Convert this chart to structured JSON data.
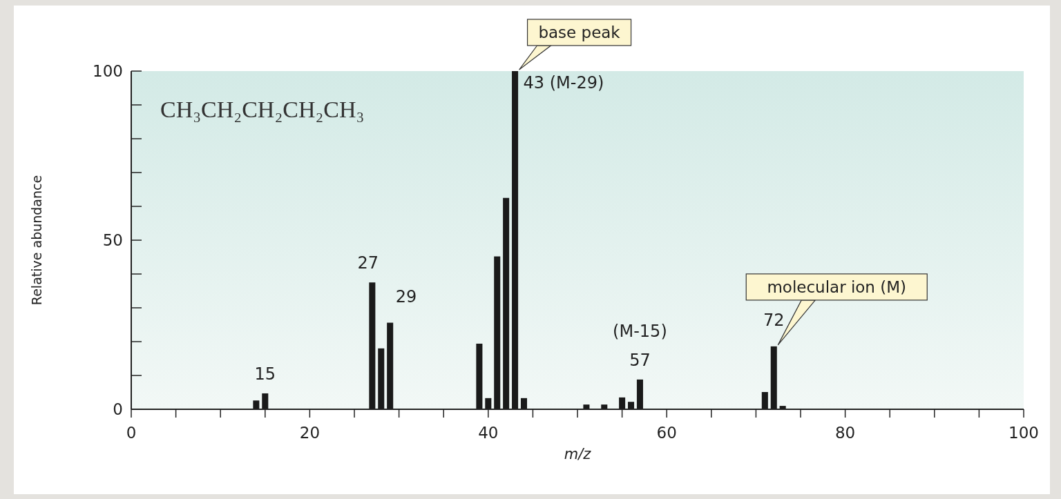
{
  "chart_data": {
    "type": "bar",
    "xlabel": "m/z",
    "ylabel": "Relative abundance",
    "x": [
      14,
      15,
      27,
      28,
      29,
      39,
      40,
      41,
      42,
      43,
      44,
      51,
      53,
      55,
      56,
      57,
      71,
      72,
      73
    ],
    "values": [
      2.6,
      4.7,
      37.5,
      18,
      25.6,
      19.4,
      3.3,
      45.2,
      62.5,
      100,
      3.3,
      1.4,
      1.4,
      3.5,
      2.2,
      8.8,
      5.1,
      18.6,
      1
    ],
    "color": "#1a1a1a",
    "xlim": [
      0,
      100
    ],
    "xticks": [
      0,
      {
        "value": 5,
        "label": null
      },
      20,
      {
        "value": 10,
        "label": null
      },
      {
        "value": 15,
        "label": null
      },
      {
        "value": 25,
        "label": null
      },
      {
        "value": 30,
        "label": null
      },
      {
        "value": 35,
        "label": null
      },
      40,
      {
        "value": 45,
        "label": null
      },
      {
        "value": 50,
        "label": null
      },
      {
        "value": 55,
        "label": null
      },
      60,
      {
        "value": 65,
        "label": null
      },
      {
        "value": 70,
        "label": null
      },
      {
        "value": 75,
        "label": null
      },
      80,
      {
        "value": 85,
        "label": null
      },
      {
        "value": 90,
        "label": null
      },
      {
        "value": 95,
        "label": null
      },
      100
    ],
    "ylim": [
      0,
      100
    ],
    "yticks": [
      0,
      {
        "value": 10,
        "label": null
      },
      {
        "value": 20,
        "label": null
      },
      {
        "value": 30,
        "label": null
      },
      {
        "value": 40,
        "label": null
      },
      50,
      {
        "value": 60,
        "label": null
      },
      {
        "value": 70,
        "label": null
      },
      {
        "value": 80,
        "label": null
      },
      {
        "value": 90,
        "label": null
      },
      100
    ],
    "grid": false,
    "annotations": [
      "CH₃CH₂CH₂CH₂CH₃",
      {
        "text": "base peak",
        "x": 43,
        "y": 100
      },
      {
        "text": "43 (M-29)",
        "x": 43,
        "y": 100
      },
      {
        "text": "15",
        "x": 15,
        "y": 4.7
      },
      {
        "text": "27",
        "x": 27,
        "y": 37.5
      },
      {
        "text": "29",
        "x": 29,
        "y": 25.6
      },
      {
        "text": "(M-15)",
        "x": 57,
        "y": 8.8
      },
      {
        "text": "57",
        "x": 57,
        "y": 8.8
      },
      {
        "text": "72",
        "x": 72,
        "y": 18.6
      },
      "molecular ion (M)"
    ]
  }
}
